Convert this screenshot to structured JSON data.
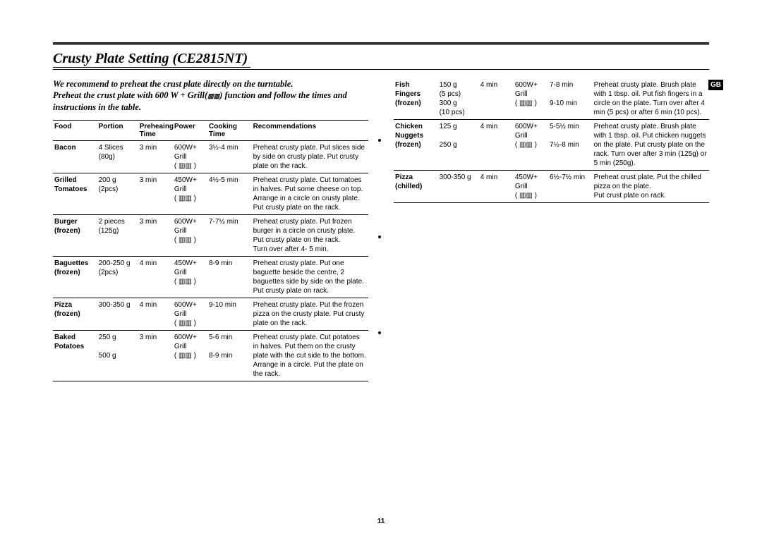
{
  "page": {
    "title": "Crusty Plate Setting (CE2815NT)",
    "intro_line1": "We recommend to preheat the crust plate directly on the turntable.",
    "intro_line2_a": "Preheat the crust plate with 600 W + Grill(",
    "intro_line2_b": ") function and follow the times and instructions in the table.",
    "page_number": "11",
    "region_tab": "GB",
    "grill_icon": "▥▥"
  },
  "headers": {
    "food": "Food",
    "portion": "Portion",
    "preheat": "Preheaing Time",
    "power": "Power",
    "cooktime": "Cooking Time",
    "rec": "Recommendations"
  },
  "left_rows": [
    {
      "food": "Bacon",
      "portion": "4 Slices (80g)",
      "preheat": "3 min",
      "power": "600W+ Grill\n( ▥▥ )",
      "cook": "3½-4 min",
      "rec": "Preheat crusty plate. Put slices side by side on crusty plate. Put crusty plate on the rack."
    },
    {
      "food": "Grilled Tomatoes",
      "portion": "200 g (2pcs)",
      "preheat": "3 min",
      "power": "450W+ Grill\n( ▥▥ )",
      "cook": "4½-5 min",
      "rec": "Preheat crusty plate. Cut tomatoes in halves. Put some cheese on top. Arrange in a circle on crusty plate. Put crusty plate on the rack."
    },
    {
      "food": "Burger (frozen)",
      "portion": "2 pieces (125g)",
      "preheat": "3 min",
      "power": "600W+ Grill\n( ▥▥ )",
      "cook": "7-7½ min",
      "rec": "Preheat crusty plate. Put frozen burger in a circle on crusty plate. Put crusty plate on the rack.\nTurn over after 4- 5 min."
    },
    {
      "food": "Baguettes (frozen)",
      "portion": "200-250 g (2pcs)",
      "preheat": "4 min",
      "power": "450W+ Grill\n( ▥▥ )",
      "cook": "8-9 min",
      "rec": "Preheat crusty plate. Put one baguette beside the centre, 2 baguettes side by side on the plate. Put crusty plate on rack."
    },
    {
      "food": "Pizza (frozen)",
      "portion": "300-350 g",
      "preheat": "4 min",
      "power": "600W+ Grill\n( ▥▥ )",
      "cook": "9-10 min",
      "rec": "Preheat crusty plate. Put the frozen pizza on the crusty plate. Put crusty plate on the rack."
    },
    {
      "food": "Baked Potatoes",
      "portion": "250 g\n\n500 g",
      "preheat": "3 min",
      "power": "600W+ Grill\n( ▥▥ )",
      "cook": "5-6 min\n\n8-9 min",
      "rec": "Preheat crusty plate. Cut potatoes in halves. Put them on the crusty plate with the cut side to the bottom. Arrange in a circle. Put the plate on the rack."
    }
  ],
  "right_rows": [
    {
      "food": "Fish Fingers (frozen)",
      "portion": "150 g\n(5 pcs)\n300 g\n(10 pcs)",
      "preheat": "4 min",
      "power": "600W+ Grill\n( ▥▥ )",
      "cook": "7-8 min\n\n9-10 min",
      "rec": "Preheat crusty plate. Brush plate with 1 tbsp. oil. Put fish fingers in a circle on the plate. Turn over after 4 min (5 pcs) or after 6 min (10 pcs)."
    },
    {
      "food": "Chicken Nuggets (frozen)",
      "portion": "125 g\n\n250 g",
      "preheat": "4 min",
      "power": "600W+ Grill\n( ▥▥ )",
      "cook": "5-5½ min\n\n7½-8 min",
      "rec": "Preheat crusty plate. Brush plate with 1 tbsp. oil. Put chicken nuggets on the plate. Put crusty plate on the rack. Turn over after 3 min (125g) or 5 min (250g)."
    },
    {
      "food": "Pizza (chilled)",
      "portion": "300-350 g",
      "preheat": "4 min",
      "power": "450W+ Grill\n( ▥▥ )",
      "cook": "6½-7½ min",
      "rec": "Preheat crust plate. Put the chilled pizza on the plate.\nPut crust plate on rack."
    }
  ],
  "colwidths": {
    "food": "14%",
    "portion": "13%",
    "preheat": "11%",
    "power": "11%",
    "cook": "14%",
    "rec": "37%"
  }
}
